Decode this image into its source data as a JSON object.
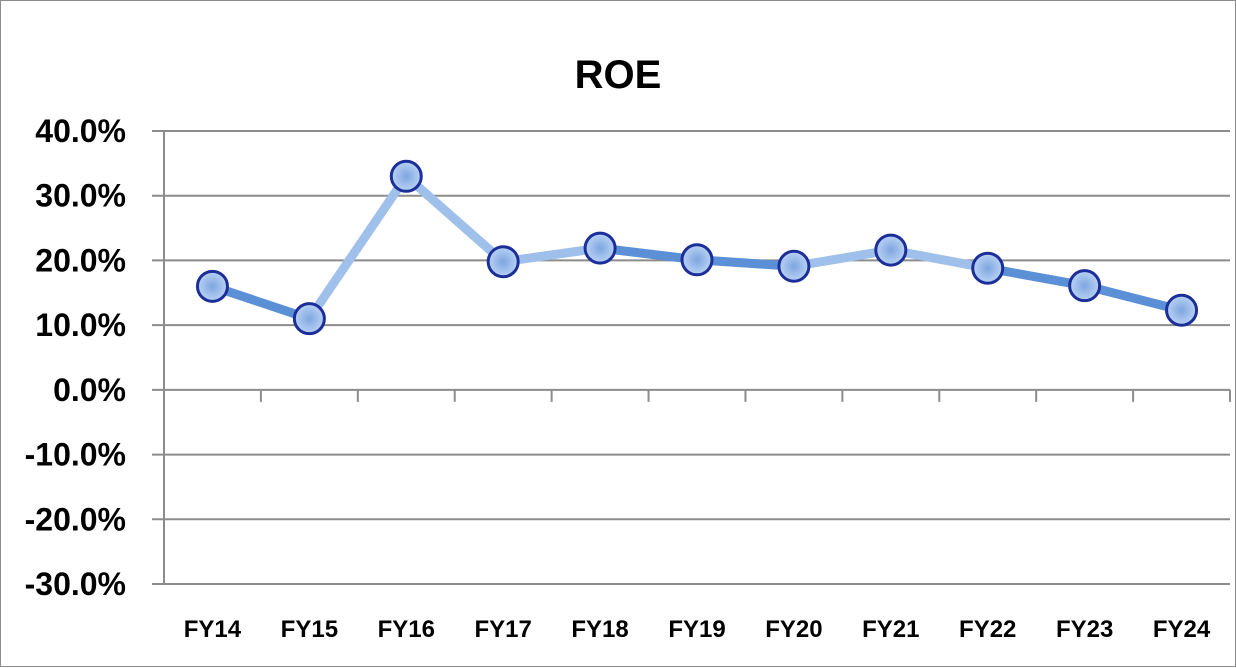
{
  "chart_data": {
    "type": "line",
    "title": "ROE",
    "xlabel": "",
    "ylabel": "",
    "categories": [
      "FY14",
      "FY15",
      "FY16",
      "FY17",
      "FY18",
      "FY19",
      "FY20",
      "FY21",
      "FY22",
      "FY23",
      "FY24"
    ],
    "series": [
      {
        "values": [
          16.0,
          11.0,
          33.0,
          19.8,
          21.9,
          20.1,
          19.1,
          21.6,
          18.8,
          16.1,
          12.3
        ]
      }
    ],
    "ylim": [
      -30,
      40
    ],
    "yticks": [
      40,
      30,
      20,
      10,
      0,
      -10,
      -20,
      -30
    ],
    "ytick_labels": [
      "40.0%",
      "30.0%",
      "20.0%",
      "10.0%",
      "0.0%",
      "-10.0%",
      "-20.0%",
      "-30.0%"
    ],
    "grid": true,
    "legend": "none",
    "colors": {
      "line_dark": "#5b8fd6",
      "line_light": "#9ec0ea",
      "marker_fill": "#a9c7f0",
      "marker_edge": "#1c2f99",
      "grid": "#8c8c8c"
    }
  }
}
